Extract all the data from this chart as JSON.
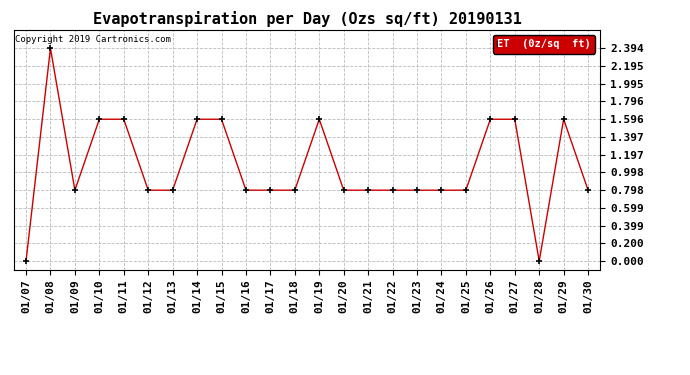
{
  "title": "Evapotranspiration per Day (Ozs sq/ft) 20190131",
  "copyright": "Copyright 2019 Cartronics.com",
  "legend_label": "ET  (0z/sq  ft)",
  "x_labels": [
    "01/07",
    "01/08",
    "01/09",
    "01/10",
    "01/11",
    "01/12",
    "01/13",
    "01/14",
    "01/15",
    "01/16",
    "01/17",
    "01/18",
    "01/19",
    "01/20",
    "01/21",
    "01/22",
    "01/23",
    "01/24",
    "01/25",
    "01/26",
    "01/27",
    "01/28",
    "01/29",
    "01/30"
  ],
  "y_plot": [
    0.0,
    2.394,
    0.798,
    1.596,
    1.596,
    0.798,
    0.798,
    1.596,
    1.596,
    0.798,
    0.798,
    0.798,
    1.596,
    0.798,
    0.798,
    0.798,
    0.798,
    0.798,
    0.798,
    1.596,
    1.596,
    0.0,
    1.596,
    0.798
  ],
  "y_ticks": [
    0.0,
    0.2,
    0.399,
    0.599,
    0.798,
    0.998,
    1.197,
    1.397,
    1.596,
    1.796,
    1.995,
    2.195,
    2.394
  ],
  "line_color": "#cc0000",
  "marker_color": "#000000",
  "background_color": "#ffffff",
  "grid_color": "#bbbbbb",
  "title_fontsize": 11,
  "tick_fontsize": 8,
  "legend_bg": "#cc0000",
  "legend_fg": "#ffffff",
  "ylim_min": -0.1,
  "ylim_max": 2.6
}
